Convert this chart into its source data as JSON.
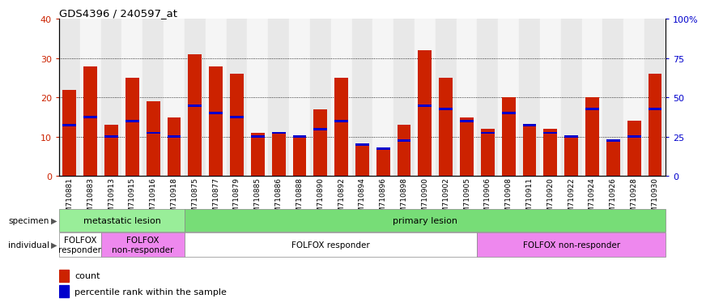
{
  "title": "GDS4396 / 240597_at",
  "samples": [
    "GSM710881",
    "GSM710883",
    "GSM710913",
    "GSM710915",
    "GSM710916",
    "GSM710918",
    "GSM710875",
    "GSM710877",
    "GSM710879",
    "GSM710885",
    "GSM710886",
    "GSM710888",
    "GSM710890",
    "GSM710892",
    "GSM710894",
    "GSM710896",
    "GSM710898",
    "GSM710900",
    "GSM710902",
    "GSM710905",
    "GSM710906",
    "GSM710908",
    "GSM710911",
    "GSM710920",
    "GSM710922",
    "GSM710924",
    "GSM710926",
    "GSM710928",
    "GSM710930"
  ],
  "count_values": [
    22,
    28,
    13,
    25,
    19,
    15,
    31,
    28,
    26,
    11,
    11,
    10,
    17,
    25,
    8,
    7,
    13,
    32,
    25,
    15,
    12,
    20,
    13,
    12,
    10,
    20,
    9,
    14,
    26
  ],
  "percentile_values": [
    13,
    15,
    10,
    14,
    11,
    10,
    18,
    16,
    15,
    10,
    11,
    10,
    12,
    14,
    8,
    7,
    9,
    18,
    17,
    14,
    11,
    16,
    13,
    11,
    10,
    17,
    9,
    10,
    17
  ],
  "bar_color": "#cc2200",
  "percentile_color": "#0000cc",
  "ylim_left": [
    0,
    40
  ],
  "ylim_right": [
    0,
    100
  ],
  "yticks_left": [
    0,
    10,
    20,
    30,
    40
  ],
  "yticks_right": [
    0,
    25,
    50,
    75,
    100
  ],
  "ytick_labels_right": [
    "0",
    "25",
    "50",
    "75",
    "100%"
  ],
  "specimen_groups": [
    {
      "label": "metastatic lesion",
      "start": 0,
      "end": 6,
      "color": "#99ee99"
    },
    {
      "label": "primary lesion",
      "start": 6,
      "end": 29,
      "color": "#77dd77"
    }
  ],
  "individual_groups": [
    {
      "label": "FOLFOX\nresponder",
      "start": 0,
      "end": 2,
      "color": "#ffffff"
    },
    {
      "label": "FOLFOX\nnon-responder",
      "start": 2,
      "end": 6,
      "color": "#ee88ee"
    },
    {
      "label": "FOLFOX responder",
      "start": 6,
      "end": 20,
      "color": "#ffffff"
    },
    {
      "label": "FOLFOX non-responder",
      "start": 20,
      "end": 29,
      "color": "#ee88ee"
    }
  ]
}
